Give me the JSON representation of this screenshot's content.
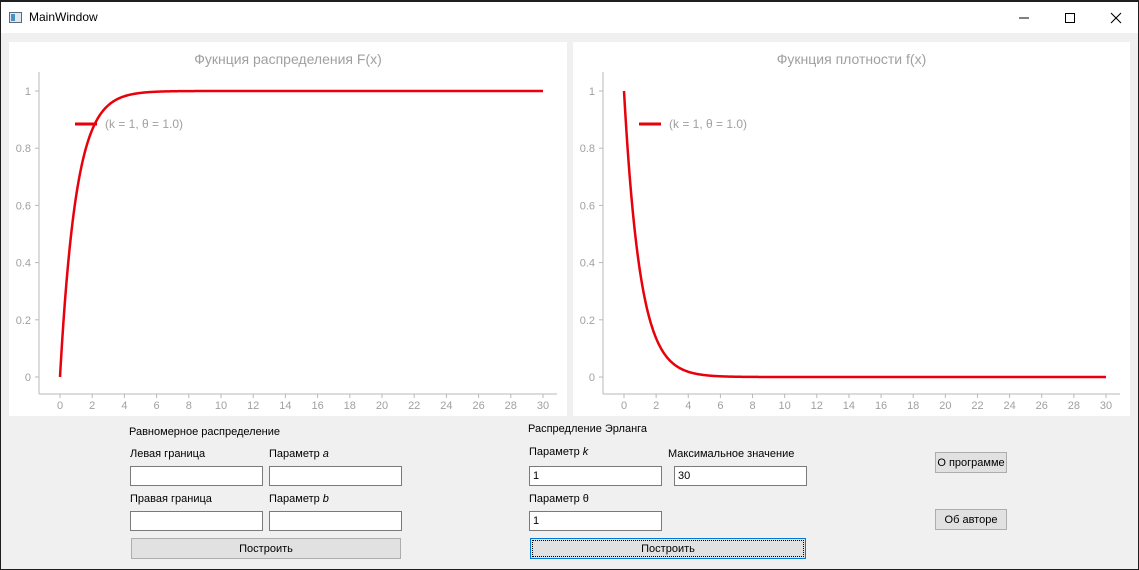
{
  "window": {
    "title": "MainWindow"
  },
  "charts": {
    "cdf": {
      "title": "Фукнция распределения F(x)",
      "legend": "(k = 1, θ = 1.0)"
    },
    "pdf": {
      "title": "Фукнция плотности f(x)",
      "legend": "(k = 1, θ = 1.0)"
    }
  },
  "chart_data": [
    {
      "type": "line",
      "title": "Фукнция распределения F(x)",
      "xlabel": "",
      "ylabel": "",
      "xlim": [
        0,
        30
      ],
      "ylim": [
        0,
        1
      ],
      "x_ticks": [
        0,
        2,
        4,
        6,
        8,
        10,
        12,
        14,
        16,
        18,
        20,
        22,
        24,
        26,
        28,
        30
      ],
      "y_ticks": [
        0,
        0.2,
        0.4,
        0.6,
        0.8,
        1
      ],
      "legend_position": "top-left",
      "series": [
        {
          "name": "(k = 1, θ = 1.0)",
          "color": "#e8000b",
          "function": "1 - exp(-x)",
          "x": [
            0,
            0.5,
            1,
            1.5,
            2,
            2.5,
            3,
            4,
            5,
            6,
            8,
            10,
            15,
            20,
            25,
            30
          ],
          "y": [
            0,
            0.39,
            0.63,
            0.78,
            0.86,
            0.92,
            0.95,
            0.98,
            0.99,
            1,
            1,
            1,
            1,
            1,
            1,
            1
          ]
        }
      ]
    },
    {
      "type": "line",
      "title": "Фукнция плотности f(x)",
      "xlabel": "",
      "ylabel": "",
      "xlim": [
        0,
        30
      ],
      "ylim": [
        0,
        1
      ],
      "x_ticks": [
        0,
        2,
        4,
        6,
        8,
        10,
        12,
        14,
        16,
        18,
        20,
        22,
        24,
        26,
        28,
        30
      ],
      "y_ticks": [
        0,
        0.2,
        0.4,
        0.6,
        0.8,
        1
      ],
      "legend_position": "top-left",
      "series": [
        {
          "name": "(k = 1, θ = 1.0)",
          "color": "#e8000b",
          "function": "exp(-x)",
          "x": [
            0,
            0.5,
            1,
            1.5,
            2,
            2.5,
            3,
            4,
            5,
            6,
            8,
            10,
            15,
            20,
            25,
            30
          ],
          "y": [
            1,
            0.61,
            0.37,
            0.22,
            0.14,
            0.08,
            0.05,
            0.02,
            0.01,
            0,
            0,
            0,
            0,
            0,
            0,
            0
          ]
        }
      ]
    }
  ],
  "uniform": {
    "heading": "Равномерное распределение",
    "left_label": "Левая граница",
    "param_a_label": "Параметр",
    "param_a_symbol": "a",
    "right_label": "Правая граница",
    "param_b_label": "Параметр",
    "param_b_symbol": "b",
    "left_value": "",
    "a_value": "",
    "right_value": "",
    "b_value": "",
    "build_label": "Построить"
  },
  "erlang": {
    "heading": "Распредление Эрланга",
    "k_label": "Параметр",
    "k_symbol": "k",
    "max_label": "Максимальное значение",
    "theta_label": "Параметр θ",
    "k_value": "1",
    "max_value": "30",
    "theta_value": "1",
    "build_label": "Построить"
  },
  "about": {
    "program_label": "О программе",
    "author_label": "Об авторе"
  },
  "colors": {
    "series": "#e8000b",
    "axis_text": "#a0a0a0",
    "title_text": "#a0a0a0"
  }
}
